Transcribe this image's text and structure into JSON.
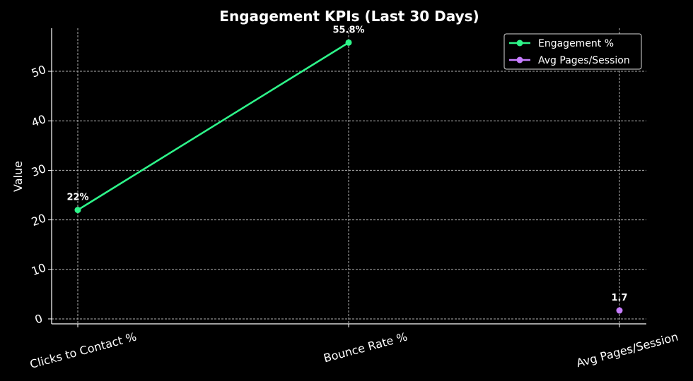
{
  "chart_data": {
    "type": "line",
    "title": "Engagement KPIs (Last 30 Days)",
    "xlabel": "",
    "ylabel": "Value",
    "categories": [
      "Clicks to Contact %",
      "Bounce Rate %",
      "Avg Pages/Session"
    ],
    "ylim": [
      -1,
      58.7
    ],
    "yticks": [
      0,
      10,
      20,
      30,
      40,
      50
    ],
    "grid": true,
    "legend_position": "top-right",
    "series": [
      {
        "name": "Engagement %",
        "color": "#2ef58a",
        "points": [
          {
            "category_index": 0,
            "value": 22,
            "label": "22%"
          },
          {
            "category_index": 1,
            "value": 55.8,
            "label": "55.8%"
          }
        ]
      },
      {
        "name": "Avg Pages/Session",
        "color": "#c77dff",
        "points": [
          {
            "category_index": 2,
            "value": 1.7,
            "label": "1.7"
          }
        ]
      }
    ]
  }
}
